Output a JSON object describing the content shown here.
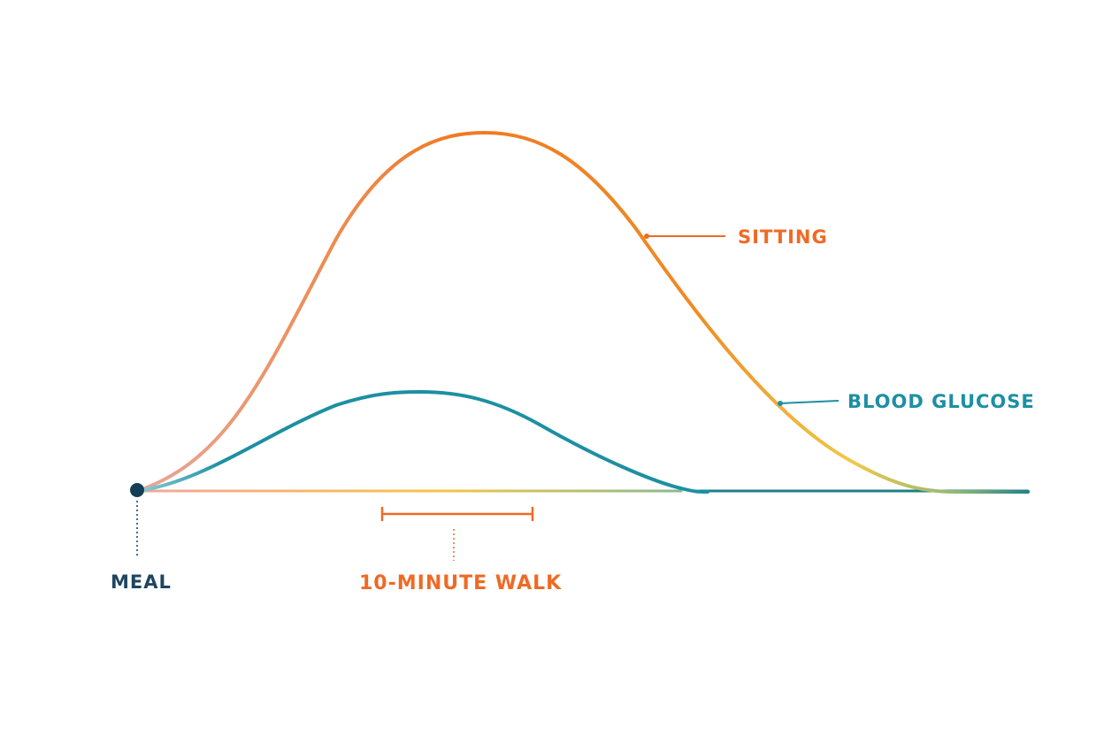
{
  "labels": {
    "sitting": "SITTING",
    "blood_glucose": "BLOOD GLUCOSE",
    "meal": "MEAL",
    "walk": "10-MINUTE WALK"
  },
  "colors": {
    "sitting_start": "#e8a79a",
    "sitting_peak": "#f07a22",
    "sitting_end": "#efc94a",
    "glucose": "#1d8fa3",
    "meal_dot": "#123f57",
    "meal_text": "#1f4560",
    "walk": "#ef6a25",
    "baseline_start": "#f2a8a0",
    "baseline_mid": "#f4c542",
    "baseline_end": "#1e7f86"
  },
  "icons": {
    "meal_marker": "filled-circle"
  }
}
